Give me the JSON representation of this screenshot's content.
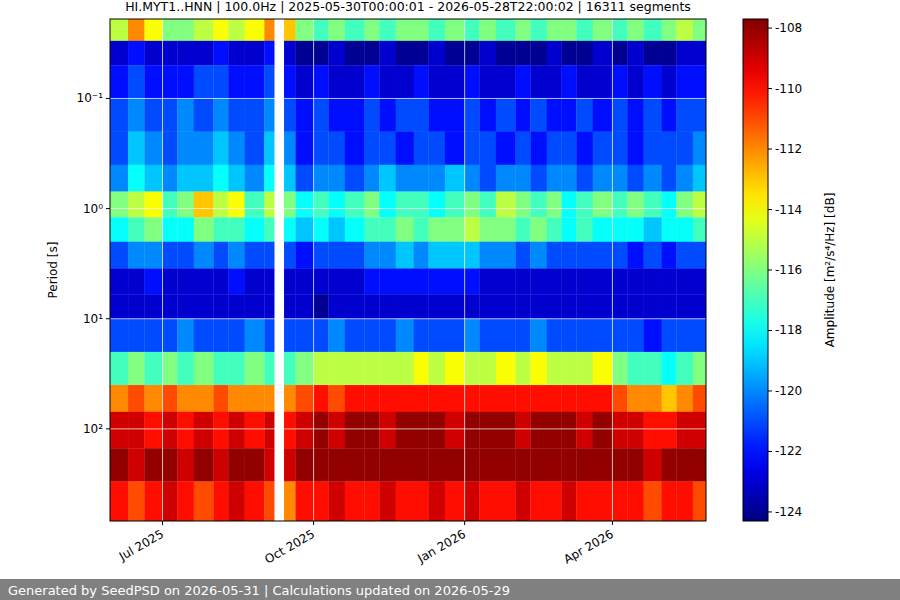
{
  "chart_data": {
    "type": "heatmap",
    "title": "HI.MYT1..HNN | 100.0Hz | 2025-05-30T00:00:01 - 2026-05-28T22:00:02 | 16311 segments",
    "ylabel": "Period [s]",
    "colorbar_label": "Amplitude [m²/s⁴/Hz] [dB]",
    "footer": "Generated by SeedPSD on 2026-05-31 | Calculations updated on 2026-05-29",
    "log": "y",
    "grid": true,
    "xlim": [
      "2025-05-30",
      "2026-05-28"
    ],
    "ylim": [
      686,
      0.019
    ],
    "xticks": [
      {
        "value": "2025-07-01",
        "label": "Jul 2025"
      },
      {
        "value": "2025-10-01",
        "label": "Oct 2025"
      },
      {
        "value": "2026-01-01",
        "label": "Jan 2026"
      },
      {
        "value": "2026-04-01",
        "label": "Apr 2026"
      }
    ],
    "yticks": [
      {
        "value": 0.1,
        "label": "10⁻¹"
      },
      {
        "value": 1,
        "label": "10⁰"
      },
      {
        "value": 10,
        "label": "10¹"
      },
      {
        "value": 100,
        "label": "10²"
      }
    ],
    "x_bins": [
      "2025-05-30",
      "2025-06-10",
      "2025-06-20",
      "2025-07-01",
      "2025-07-10",
      "2025-07-20",
      "2025-08-01",
      "2025-08-10",
      "2025-08-20",
      "2025-09-01",
      "2025-09-07",
      "2025-09-13",
      "2025-09-20",
      "2025-10-01",
      "2025-10-10",
      "2025-10-20",
      "2025-11-01",
      "2025-11-10",
      "2025-11-20",
      "2025-12-01",
      "2025-12-10",
      "2025-12-20",
      "2026-01-01",
      "2026-01-10",
      "2026-01-20",
      "2026-02-01",
      "2026-02-10",
      "2026-02-20",
      "2026-03-01",
      "2026-03-10",
      "2026-03-20",
      "2026-04-01",
      "2026-04-10",
      "2026-04-20",
      "2026-05-01",
      "2026-05-10",
      "2026-05-20",
      "2026-05-28"
    ],
    "y_bins": [
      0.019,
      0.03,
      0.05,
      0.1,
      0.2,
      0.4,
      0.7,
      1.2,
      2,
      3.5,
      6,
      10,
      20,
      40,
      70,
      150,
      300,
      686
    ],
    "values": [
      [
        -115,
        -112,
        -114,
        -116,
        -116,
        -115,
        -114,
        -115,
        -114,
        -112,
        null,
        -113,
        -116,
        -117,
        -116,
        -117,
        -116,
        -117,
        -116,
        -116,
        -117,
        -116,
        -117,
        -116,
        -117,
        -116,
        -117,
        -116,
        -116,
        -117,
        -116,
        -117,
        -116,
        -117,
        -116,
        -115,
        -116
      ],
      [
        -123,
        -122,
        -123,
        -123,
        -123,
        -123,
        -122,
        -123,
        -123,
        -122,
        null,
        -123,
        -124,
        -124,
        -123,
        -124,
        -124,
        -123,
        -124,
        -124,
        -123,
        -124,
        -124,
        -123,
        -124,
        -124,
        -124,
        -123,
        -124,
        -124,
        -123,
        -124,
        -123,
        -124,
        -124,
        -123,
        -123
      ],
      [
        -122,
        -121,
        -122,
        -122,
        -122,
        -121,
        -121,
        -122,
        -122,
        -121,
        null,
        -122,
        -123,
        -122,
        -123,
        -123,
        -122,
        -123,
        -123,
        -122,
        -123,
        -123,
        -122,
        -123,
        -123,
        -122,
        -123,
        -123,
        -122,
        -123,
        -123,
        -122,
        -123,
        -122,
        -123,
        -122,
        -122
      ],
      [
        -121,
        -120,
        -121,
        -121,
        -120,
        -121,
        -120,
        -121,
        -121,
        -120,
        null,
        -121,
        -122,
        -121,
        -122,
        -122,
        -121,
        -122,
        -121,
        -121,
        -122,
        -122,
        -121,
        -122,
        -121,
        -122,
        -121,
        -122,
        -122,
        -121,
        -122,
        -121,
        -122,
        -121,
        -122,
        -121,
        -121
      ],
      [
        -121,
        -119,
        -120,
        -121,
        -120,
        -120,
        -119,
        -120,
        -121,
        -119,
        null,
        -120,
        -122,
        -121,
        -121,
        -122,
        -121,
        -121,
        -122,
        -121,
        -121,
        -122,
        -121,
        -121,
        -122,
        -121,
        -122,
        -121,
        -121,
        -122,
        -121,
        -121,
        -122,
        -121,
        -121,
        -121,
        -120
      ],
      [
        -120,
        -118,
        -119,
        -120,
        -119,
        -119,
        -118,
        -119,
        -120,
        -118,
        null,
        -119,
        -121,
        -120,
        -120,
        -121,
        -120,
        -119,
        -120,
        -120,
        -120,
        -119,
        -120,
        -121,
        -120,
        -120,
        -121,
        -120,
        -120,
        -121,
        -120,
        -120,
        -121,
        -120,
        -121,
        -120,
        -119
      ],
      [
        -116,
        -115,
        -114,
        -117,
        -116,
        -113,
        -115,
        -114,
        -117,
        -115,
        null,
        -116,
        -118,
        -117,
        -118,
        -117,
        -116,
        -118,
        -117,
        -117,
        -118,
        -117,
        -116,
        -117,
        -115,
        -116,
        -117,
        -116,
        -118,
        -117,
        -116,
        -117,
        -116,
        -117,
        -118,
        -116,
        -115
      ],
      [
        -118,
        -117,
        -116,
        -118,
        -118,
        -116,
        -117,
        -117,
        -118,
        -117,
        null,
        -118,
        -119,
        -118,
        -119,
        -118,
        -117,
        -117,
        -116,
        -117,
        -116,
        -116,
        -115,
        -116,
        -116,
        -117,
        -116,
        -117,
        -118,
        -117,
        -118,
        -118,
        -118,
        -119,
        -118,
        -118,
        -117
      ],
      [
        -121,
        -120,
        -120,
        -121,
        -121,
        -120,
        -121,
        -120,
        -121,
        -121,
        null,
        -121,
        -122,
        -121,
        -121,
        -121,
        -120,
        -120,
        -119,
        -120,
        -119,
        -119,
        -119,
        -120,
        -120,
        -121,
        -120,
        -121,
        -121,
        -121,
        -121,
        -121,
        -122,
        -121,
        -122,
        -121,
        -121
      ],
      [
        -123,
        -123,
        -122,
        -123,
        -123,
        -123,
        -123,
        -122,
        -123,
        -123,
        null,
        -123,
        -123,
        -123,
        -123,
        -123,
        -122,
        -122,
        -122,
        -122,
        -122,
        -122,
        -122,
        -123,
        -123,
        -123,
        -123,
        -123,
        -123,
        -123,
        -123,
        -123,
        -123,
        -123,
        -123,
        -123,
        -123
      ],
      [
        -123,
        -123,
        -123,
        -123,
        -123,
        -123,
        -123,
        -123,
        -123,
        -123,
        null,
        -123,
        -123,
        -124,
        -123,
        -123,
        -123,
        -123,
        -123,
        -123,
        -123,
        -123,
        -123,
        -123,
        -123,
        -123,
        -123,
        -123,
        -123,
        -123,
        -123,
        -123,
        -123,
        -123,
        -123,
        -123,
        -123
      ],
      [
        -121,
        -121,
        -121,
        -121,
        -120,
        -121,
        -121,
        -121,
        -120,
        -121,
        null,
        -121,
        -121,
        -121,
        -120,
        -121,
        -121,
        -121,
        -120,
        -121,
        -121,
        -121,
        -120,
        -121,
        -121,
        -121,
        -120,
        -121,
        -121,
        -121,
        -121,
        -121,
        -121,
        -122,
        -121,
        -121,
        -121
      ],
      [
        -117,
        -116,
        -117,
        -116,
        -117,
        -116,
        -117,
        -117,
        -116,
        -117,
        null,
        -117,
        -116,
        -115,
        -115,
        -115,
        -115,
        -115,
        -115,
        -114,
        -115,
        -114,
        -115,
        -115,
        -114,
        -115,
        -114,
        -115,
        -115,
        -115,
        -114,
        -116,
        -117,
        -117,
        -118,
        -117,
        -116
      ],
      [
        -112,
        -111,
        -112,
        -111,
        -112,
        -112,
        -111,
        -112,
        -112,
        -112,
        null,
        -112,
        -111,
        -110,
        -111,
        -110,
        -110,
        -110,
        -110,
        -110,
        -110,
        -110,
        -110,
        -110,
        -110,
        -110,
        -110,
        -110,
        -110,
        -110,
        -110,
        -111,
        -112,
        -112,
        -113,
        -112,
        -111
      ],
      [
        -109,
        -109,
        -110,
        -109,
        -110,
        -109,
        -110,
        -109,
        -110,
        -109,
        null,
        -110,
        -109,
        -108,
        -109,
        -108,
        -108,
        -109,
        -108,
        -108,
        -108,
        -109,
        -108,
        -108,
        -108,
        -109,
        -108,
        -108,
        -108,
        -109,
        -108,
        -109,
        -109,
        -110,
        -110,
        -109,
        -109
      ],
      [
        -108,
        -109,
        -108,
        -108,
        -109,
        -108,
        -109,
        -108,
        -108,
        -109,
        null,
        -109,
        -108,
        -108,
        -108,
        -108,
        -108,
        -108,
        -108,
        -108,
        -108,
        -108,
        -108,
        -108,
        -108,
        -108,
        -108,
        -108,
        -108,
        -108,
        -108,
        -108,
        -108,
        -109,
        -108,
        -108,
        -108
      ],
      [
        -110,
        -111,
        -110,
        -109,
        -110,
        -111,
        -110,
        -109,
        -110,
        -111,
        null,
        -112,
        -110,
        -110,
        -109,
        -110,
        -110,
        -109,
        -110,
        -110,
        -109,
        -110,
        -109,
        -110,
        -110,
        -109,
        -110,
        -110,
        -109,
        -110,
        -110,
        -110,
        -110,
        -111,
        -110,
        -110,
        -111
      ]
    ],
    "colorbar": {
      "range": [
        -124.3,
        -107.7
      ],
      "ticks": [
        -108,
        -110,
        -112,
        -114,
        -116,
        -118,
        -120,
        -122,
        -124
      ]
    }
  }
}
